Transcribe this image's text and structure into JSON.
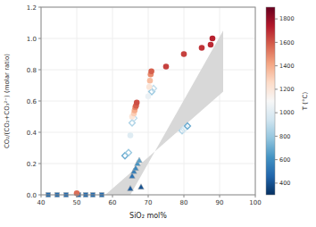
{
  "chart_data": {
    "type": "scatter",
    "xlabel": "SiO₂ mol%",
    "ylabel": "CO₂/(CO₂+CO₃²⁻) (molar ratio)",
    "xlim": [
      40,
      100
    ],
    "ylim": [
      0,
      1.2
    ],
    "xticks": [
      40,
      50,
      60,
      70,
      80,
      90,
      100
    ],
    "yticks": [
      {
        "value": 0,
        "label": "0.0"
      },
      0.2,
      0.4,
      0.6,
      0.8,
      {
        "value": 1,
        "label": "1.0"
      },
      1.2
    ],
    "colorbar": {
      "label": "T (°C)",
      "range": [
        300,
        1900
      ],
      "ticks": [
        400,
        600,
        800,
        1000,
        1200,
        1400,
        1600,
        1800
      ]
    },
    "band": {
      "x": [
        58,
        91,
        91,
        65
      ],
      "y": [
        0.0,
        0.66,
        1.05,
        0.0
      ],
      "color": "#d8d8d8"
    },
    "series": [
      {
        "marker": "square",
        "x": [
          42.0,
          44.5,
          47.0,
          50.5,
          52.5,
          54.5,
          57.0
        ],
        "values": [
          0.0,
          0.0,
          0.0,
          0.0,
          0.0,
          0.0,
          0.0
        ],
        "temperature": [
          480,
          480,
          480,
          480,
          480,
          480,
          480
        ]
      },
      {
        "marker": "triangle",
        "x": [
          65.0,
          65.5,
          66.0,
          66.5,
          67.0,
          67.5,
          68.0
        ],
        "values": [
          0.04,
          0.12,
          0.15,
          0.17,
          0.2,
          0.22,
          0.05
        ],
        "temperature": [
          430,
          500,
          540,
          580,
          620,
          660,
          400
        ]
      },
      {
        "marker": "open-diamond",
        "x": [
          63.5,
          64.5,
          65.5,
          66.0,
          71.0,
          71.5,
          79.5,
          80.0,
          80.5,
          81.0
        ],
        "values": [
          0.25,
          0.27,
          0.46,
          0.49,
          0.66,
          0.68,
          0.41,
          0.42,
          0.43,
          0.44
        ],
        "temperature": [
          700,
          800,
          850,
          900,
          800,
          900,
          850,
          950,
          1000,
          700
        ]
      },
      {
        "marker": "circle",
        "x": [
          50.0,
          65.0,
          65.5,
          66.0,
          66.2,
          66.4,
          66.6,
          66.8,
          70.0,
          70.3,
          70.5,
          70.7,
          70.9,
          75.0,
          80.0,
          85.0,
          87.5,
          88.0
        ],
        "values": [
          0.01,
          0.38,
          0.5,
          0.52,
          0.54,
          0.56,
          0.57,
          0.59,
          0.63,
          0.69,
          0.73,
          0.77,
          0.79,
          0.82,
          0.9,
          0.94,
          0.96,
          1.0
        ],
        "temperature": [
          1550,
          1000,
          1200,
          1300,
          1400,
          1500,
          1580,
          1620,
          1050,
          1200,
          1350,
          1480,
          1580,
          1650,
          1650,
          1680,
          1700,
          1720
        ]
      }
    ]
  }
}
